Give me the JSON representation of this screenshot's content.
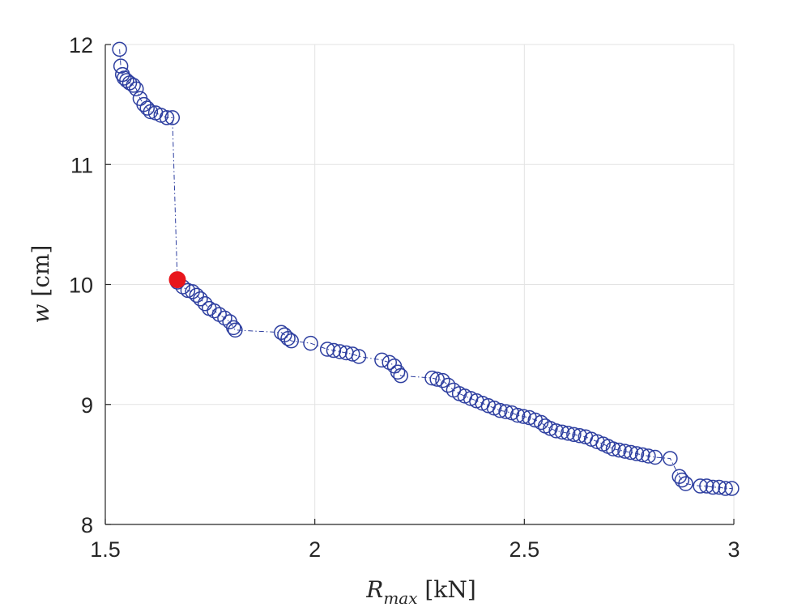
{
  "chart_data": {
    "type": "scatter",
    "xlabel": "R_max [kN]",
    "xlabel_main": "R",
    "xlabel_sub": "max",
    "xlabel_unit": "[kN]",
    "ylabel": "w [cm]",
    "ylabel_main": "w",
    "ylabel_unit": "[cm]",
    "xlim": [
      1.5,
      3
    ],
    "ylim": [
      8,
      12
    ],
    "xticks": [
      "1.5",
      "2",
      "2.5",
      "3"
    ],
    "yticks": [
      "8",
      "9",
      "10",
      "11",
      "12"
    ],
    "grid": true,
    "series": [
      {
        "marker": "open-circle",
        "color": "#2e3fa0",
        "connector": "dash-dot",
        "points": [
          [
            1.534,
            11.96
          ],
          [
            1.537,
            11.82
          ],
          [
            1.541,
            11.75
          ],
          [
            1.545,
            11.72
          ],
          [
            1.551,
            11.7
          ],
          [
            1.558,
            11.68
          ],
          [
            1.567,
            11.66
          ],
          [
            1.574,
            11.63
          ],
          [
            1.583,
            11.55
          ],
          [
            1.592,
            11.5
          ],
          [
            1.6,
            11.47
          ],
          [
            1.608,
            11.44
          ],
          [
            1.62,
            11.43
          ],
          [
            1.633,
            11.41
          ],
          [
            1.647,
            11.39
          ],
          [
            1.66,
            11.39
          ],
          [
            1.672,
            10.02
          ],
          [
            1.685,
            9.98
          ],
          [
            1.697,
            9.95
          ],
          [
            1.708,
            9.94
          ],
          [
            1.718,
            9.91
          ],
          [
            1.727,
            9.88
          ],
          [
            1.738,
            9.84
          ],
          [
            1.748,
            9.8
          ],
          [
            1.76,
            9.78
          ],
          [
            1.772,
            9.75
          ],
          [
            1.785,
            9.72
          ],
          [
            1.797,
            9.69
          ],
          [
            1.806,
            9.64
          ],
          [
            1.81,
            9.62
          ],
          [
            1.92,
            9.6
          ],
          [
            1.928,
            9.58
          ],
          [
            1.936,
            9.55
          ],
          [
            1.944,
            9.53
          ],
          [
            1.99,
            9.51
          ],
          [
            2.03,
            9.46
          ],
          [
            2.045,
            9.45
          ],
          [
            2.06,
            9.44
          ],
          [
            2.075,
            9.43
          ],
          [
            2.09,
            9.42
          ],
          [
            2.105,
            9.4
          ],
          [
            2.16,
            9.37
          ],
          [
            2.178,
            9.35
          ],
          [
            2.19,
            9.32
          ],
          [
            2.198,
            9.27
          ],
          [
            2.205,
            9.24
          ],
          [
            2.28,
            9.22
          ],
          [
            2.292,
            9.21
          ],
          [
            2.305,
            9.2
          ],
          [
            2.318,
            9.16
          ],
          [
            2.331,
            9.12
          ],
          [
            2.345,
            9.09
          ],
          [
            2.358,
            9.07
          ],
          [
            2.372,
            9.05
          ],
          [
            2.386,
            9.03
          ],
          [
            2.4,
            9.01
          ],
          [
            2.414,
            8.99
          ],
          [
            2.428,
            8.97
          ],
          [
            2.442,
            8.95
          ],
          [
            2.456,
            8.94
          ],
          [
            2.47,
            8.93
          ],
          [
            2.484,
            8.91
          ],
          [
            2.498,
            8.9
          ],
          [
            2.512,
            8.89
          ],
          [
            2.526,
            8.87
          ],
          [
            2.54,
            8.85
          ],
          [
            2.55,
            8.82
          ],
          [
            2.562,
            8.8
          ],
          [
            2.576,
            8.78
          ],
          [
            2.59,
            8.77
          ],
          [
            2.604,
            8.76
          ],
          [
            2.618,
            8.75
          ],
          [
            2.632,
            8.74
          ],
          [
            2.646,
            8.73
          ],
          [
            2.66,
            8.71
          ],
          [
            2.674,
            8.69
          ],
          [
            2.688,
            8.67
          ],
          [
            2.7,
            8.65
          ],
          [
            2.712,
            8.63
          ],
          [
            2.726,
            8.62
          ],
          [
            2.74,
            8.61
          ],
          [
            2.754,
            8.6
          ],
          [
            2.768,
            8.59
          ],
          [
            2.782,
            8.58
          ],
          [
            2.796,
            8.57
          ],
          [
            2.812,
            8.56
          ],
          [
            2.848,
            8.55
          ],
          [
            2.87,
            8.4
          ],
          [
            2.876,
            8.37
          ],
          [
            2.885,
            8.34
          ],
          [
            2.92,
            8.32
          ],
          [
            2.935,
            8.32
          ],
          [
            2.95,
            8.31
          ],
          [
            2.965,
            8.31
          ],
          [
            2.98,
            8.3
          ],
          [
            2.995,
            8.3
          ]
        ]
      },
      {
        "marker": "filled-circle",
        "color": "#e8161c",
        "points": [
          [
            1.672,
            10.04
          ]
        ]
      }
    ]
  }
}
